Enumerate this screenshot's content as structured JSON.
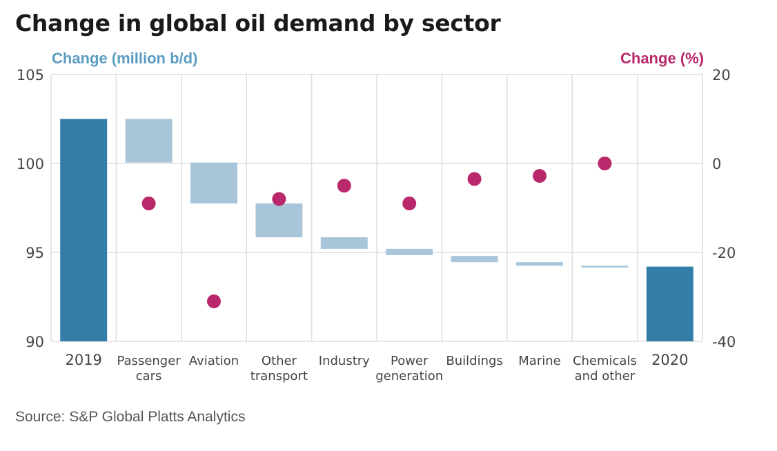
{
  "title": "Change in global oil demand by sector",
  "source": "Source: S&P Global Platts Analytics",
  "colors": {
    "total_bar": "#337ea9",
    "change_bar": "#a8c5da",
    "dot": "#b8286a",
    "left_axis_title": "#5a9bc2",
    "right_axis_title": "#b8286a",
    "grid": "#dddddd",
    "tick_text": "#444444"
  },
  "chart_data": {
    "type": "bar",
    "subtype": "waterfall with percent-change dots",
    "categories": [
      [
        "2019"
      ],
      [
        "Passenger",
        "cars"
      ],
      [
        "Aviation"
      ],
      [
        "Other",
        "transport"
      ],
      [
        "Industry"
      ],
      [
        "Power",
        "generation"
      ],
      [
        "Buildings"
      ],
      [
        "Marine"
      ],
      [
        "Chemicals",
        "and other"
      ],
      [
        "2020"
      ]
    ],
    "y_left": {
      "label": "Change (million b/d)",
      "ylim": [
        90,
        105
      ],
      "ticks": [
        "90",
        "95",
        "100",
        "105"
      ]
    },
    "y_right": {
      "label": "Change (%)",
      "ylim": [
        -40,
        20
      ],
      "ticks": [
        "-40",
        "-20",
        "0",
        "20"
      ]
    },
    "bars": [
      {
        "category": "2019",
        "kind": "total",
        "start": 90,
        "end": 102.5
      },
      {
        "category": "Passenger cars",
        "kind": "change",
        "start": 102.5,
        "end": 100.05
      },
      {
        "category": "Aviation",
        "kind": "change",
        "start": 100.05,
        "end": 97.75
      },
      {
        "category": "Other transport",
        "kind": "change",
        "start": 97.75,
        "end": 95.85
      },
      {
        "category": "Industry",
        "kind": "change",
        "start": 95.85,
        "end": 95.2
      },
      {
        "category": "Power generation",
        "kind": "change",
        "start": 95.2,
        "end": 94.85
      },
      {
        "category": "Buildings",
        "kind": "change",
        "start": 94.8,
        "end": 94.45
      },
      {
        "category": "Marine",
        "kind": "change",
        "start": 94.45,
        "end": 94.25
      },
      {
        "category": "Chemicals and other",
        "kind": "change",
        "start": 94.25,
        "end": 94.15
      },
      {
        "category": "2020",
        "kind": "total",
        "start": 90,
        "end": 94.2
      }
    ],
    "percent_change": [
      {
        "category": "Passenger cars",
        "value": -9
      },
      {
        "category": "Aviation",
        "value": -31
      },
      {
        "category": "Other transport",
        "value": -8
      },
      {
        "category": "Industry",
        "value": -5
      },
      {
        "category": "Power generation",
        "value": -9
      },
      {
        "category": "Buildings",
        "value": -3.5
      },
      {
        "category": "Marine",
        "value": -2.8
      },
      {
        "category": "Chemicals and other",
        "value": 0
      }
    ],
    "grid": true
  }
}
